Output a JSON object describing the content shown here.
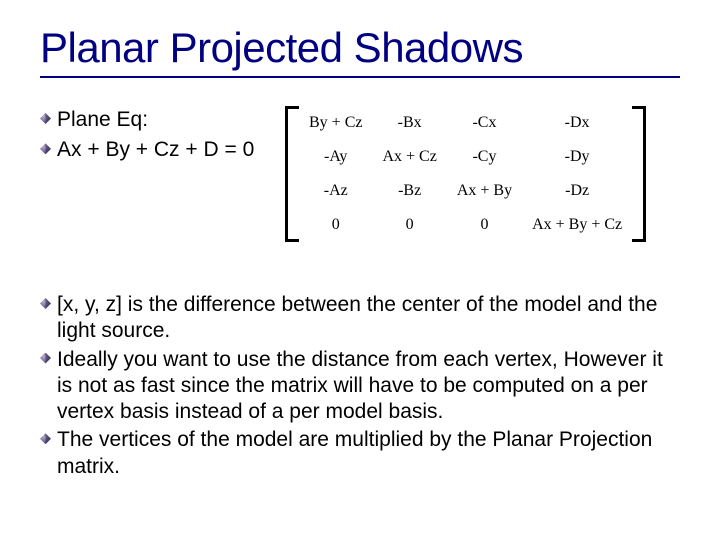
{
  "title": "Planar Projected Shadows",
  "colors": {
    "title_color": "#000080",
    "underline_color": "#000080",
    "text_color": "#000000",
    "bullet_color": "#6a5a9a",
    "background": "#ffffff"
  },
  "typography": {
    "title_fontsize": 42,
    "body_fontsize": 21,
    "matrix_fontsize": 16,
    "body_font": "Tahoma",
    "matrix_font": "Times New Roman"
  },
  "left_bullets": {
    "b1": "Plane Eq:",
    "b2": "Ax + By + Cz + D = 0"
  },
  "matrix": {
    "rows": [
      [
        "By + Cz",
        "-Bx",
        "-Cx",
        "-Dx"
      ],
      [
        "-Ay",
        "Ax + Cz",
        "-Cy",
        "-Dy"
      ],
      [
        "-Az",
        "-Bz",
        "Ax + By",
        "-Dz"
      ],
      [
        "0",
        "0",
        "0",
        "Ax + By + Cz"
      ]
    ]
  },
  "bottom_bullets": {
    "b1": "[x, y, z] is the difference between the center of the model and the light source.",
    "b2": "Ideally you want to use the distance from each vertex, However it is not as fast since the matrix will have to be computed on a per vertex basis instead of a per model basis.",
    "b3": "The vertices of the model are multiplied by the Planar Projection matrix."
  }
}
